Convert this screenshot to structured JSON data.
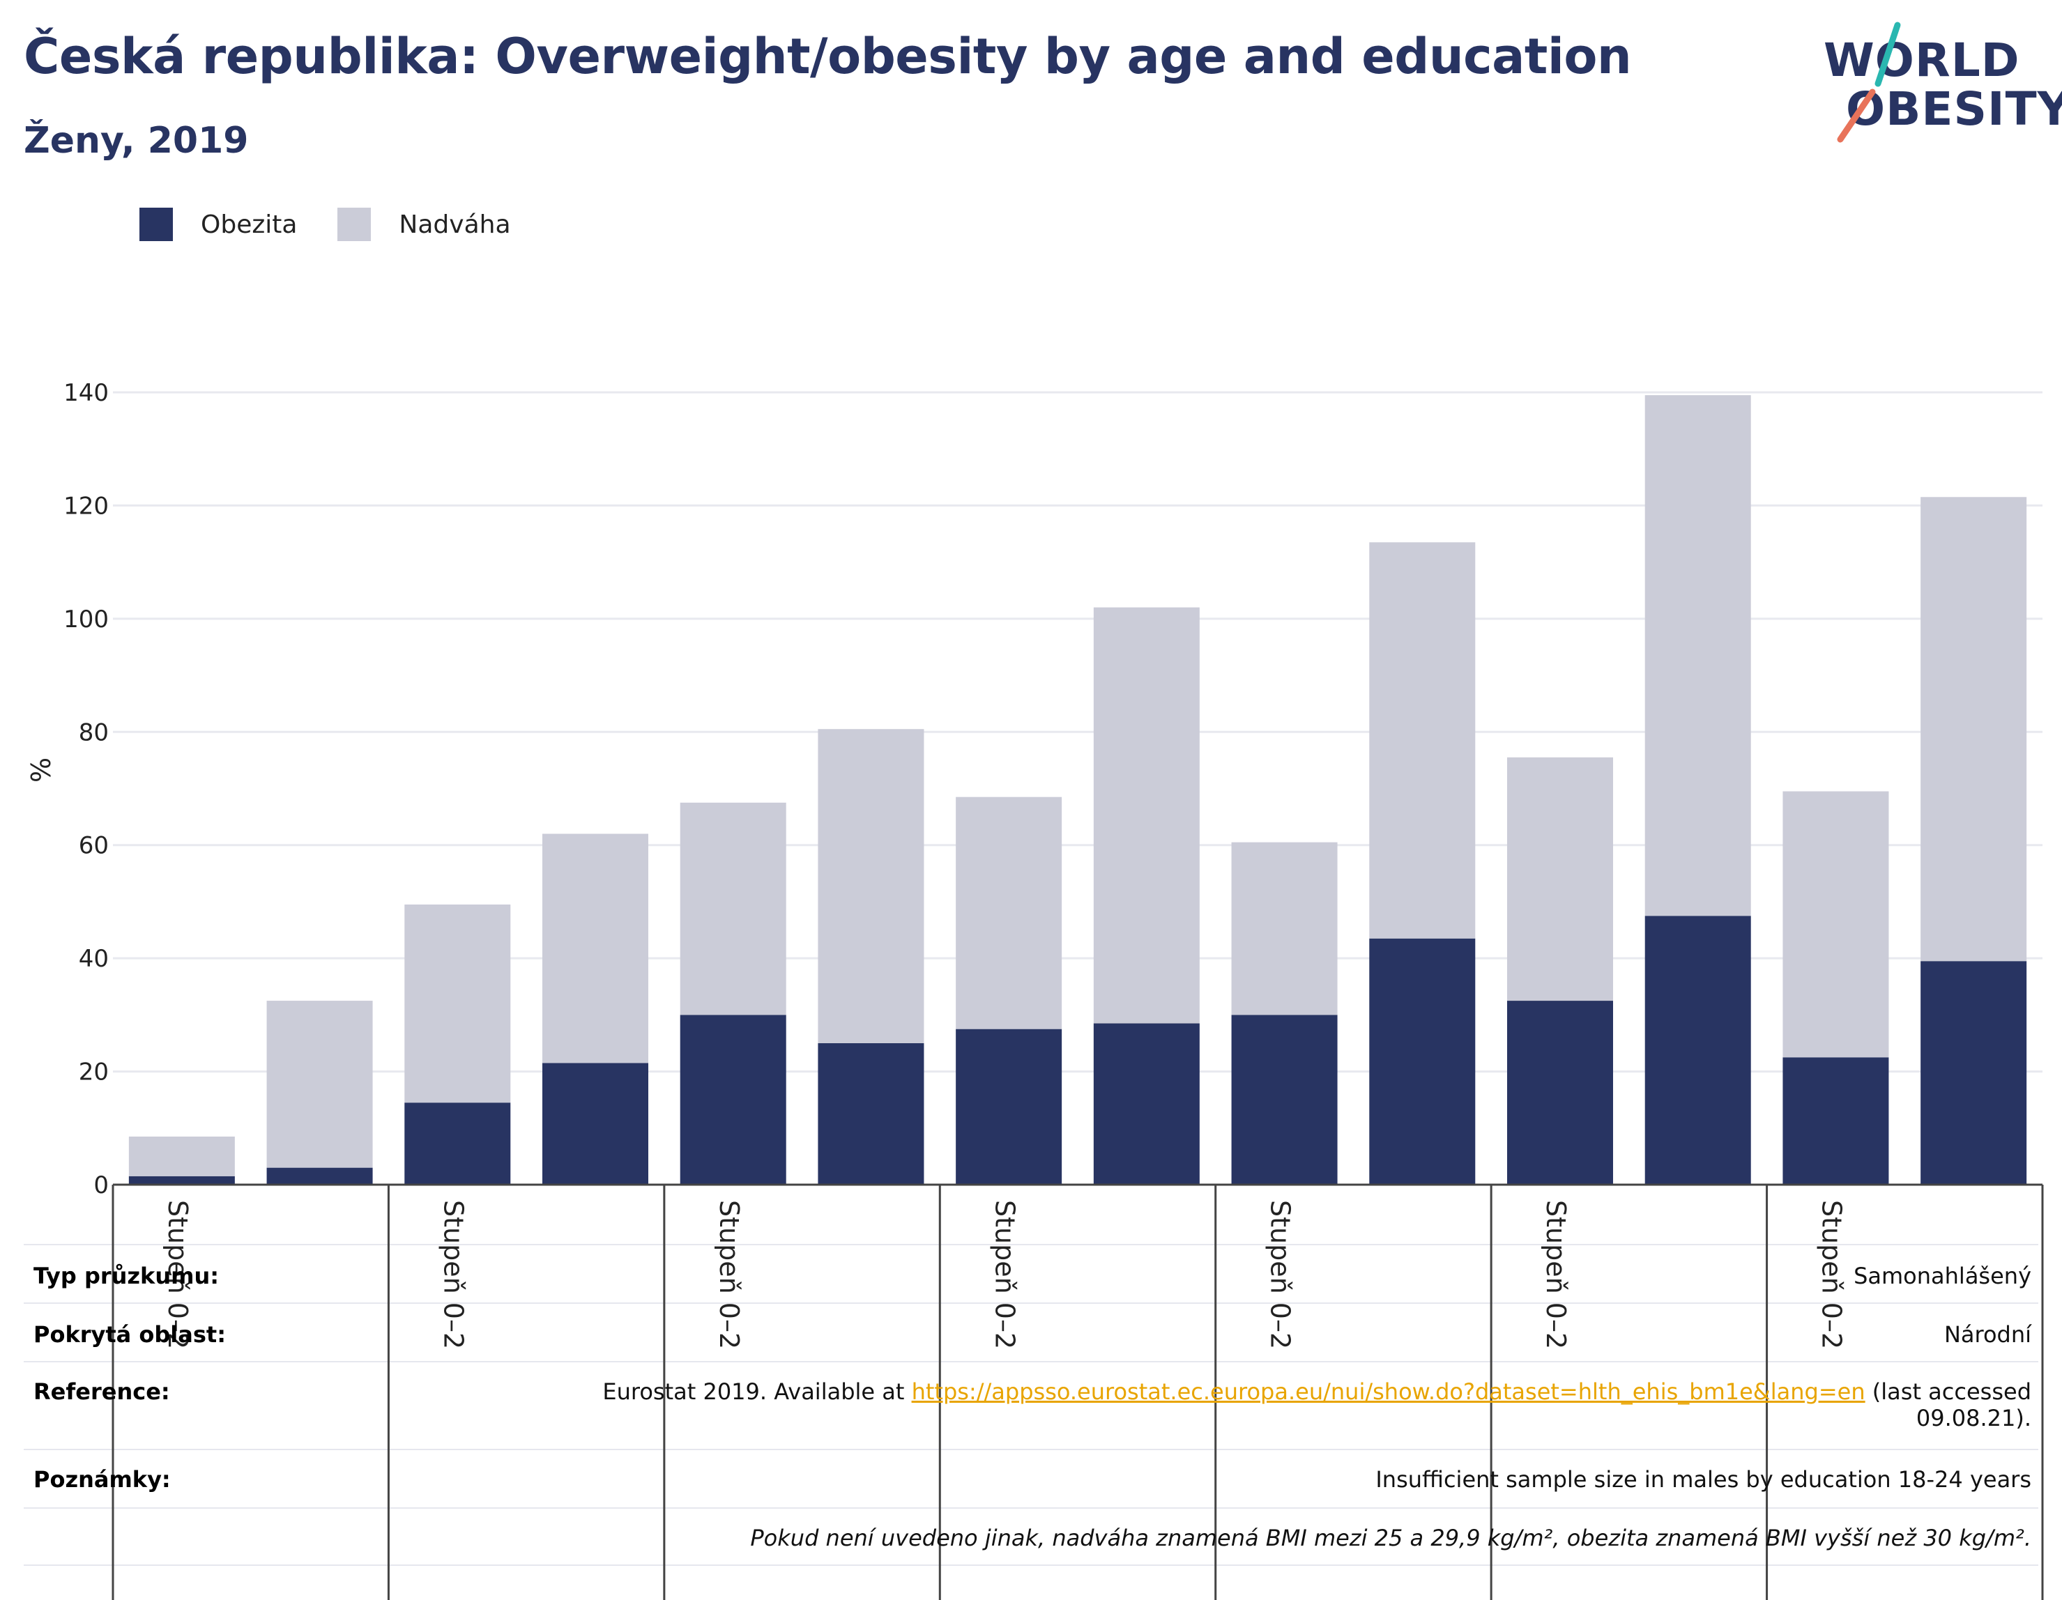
{
  "header": {
    "title": "Česká republika: Overweight/obesity by age and education",
    "subtitle": "Ženy, 2019"
  },
  "logo": {
    "line1": "WORLD",
    "line2": "OBESITY",
    "brand_color": "#283462",
    "slash_colors": [
      "#e8735a",
      "#2ab7b0"
    ]
  },
  "colors": {
    "obezita": "#283462",
    "nadvaha": "#cbccd8",
    "grid": "#e8e9ef",
    "axis": "#444444",
    "link": "#e8a400"
  },
  "chart_data": {
    "type": "bar",
    "stacked": true,
    "ylabel": "%",
    "ylim": [
      0,
      140
    ],
    "yticks": [
      0,
      20,
      40,
      60,
      80,
      100,
      120,
      140
    ],
    "grid": true,
    "legend_position": "top-left",
    "group_label": "Stupeň 0–2",
    "group_count": 7,
    "series": [
      {
        "name": "Obezita",
        "values": [
          1.5,
          3,
          14.5,
          21.5,
          30,
          25,
          27.5,
          28.5,
          30,
          43.5,
          32.5,
          47.5,
          22.5,
          39.5
        ]
      },
      {
        "name": "Nadváha",
        "values": [
          7,
          29.5,
          35,
          40.5,
          37.5,
          55.5,
          41,
          73.5,
          30.5,
          70,
          43,
          92,
          47,
          82
        ]
      }
    ]
  },
  "info": {
    "survey_type_label": "Typ průzkumu:",
    "survey_type_value": "Samonahlášený",
    "coverage_label": "Pokrytá oblast:",
    "coverage_value": "Národní",
    "reference_label": "Reference:",
    "reference_prefix": "Eurostat 2019. Available at",
    "reference_link": "https://appsso.eurostat.ec.europa.eu/nui/show.do?dataset=hlth_ehis_bm1e&lang=en",
    "reference_suffix": "(last accessed",
    "reference_date": "09.08.21).",
    "notes_label": "Poznámky:",
    "notes_value": "Insufficient sample size in males by education 18-24 years",
    "definition_note": "Pokud není uvedeno jinak, nadváha znamená BMI mezi 25 a 29,9 kg/m², obezita znamená BMI vyšší než 30 kg/m²."
  }
}
